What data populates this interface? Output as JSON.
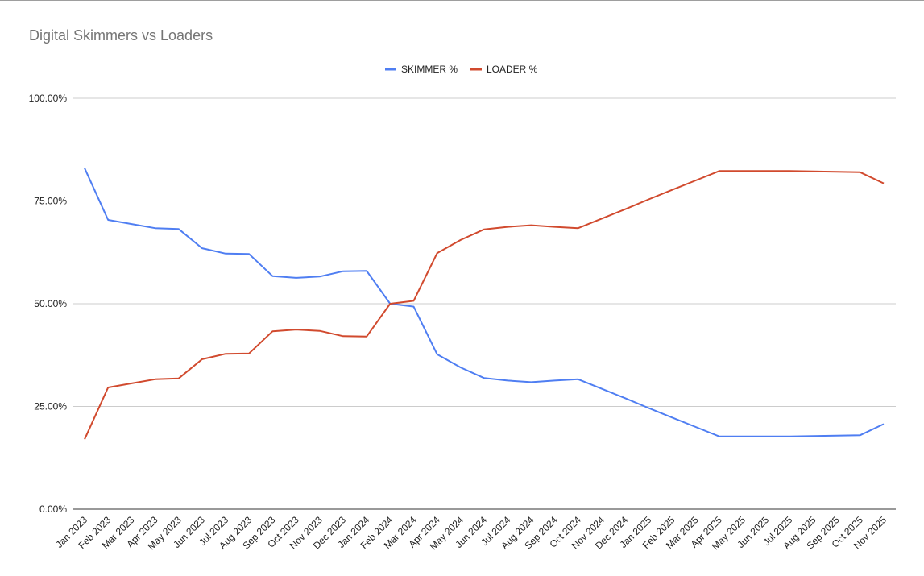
{
  "chart_data": {
    "type": "line",
    "title": "Digital Skimmers vs Loaders",
    "xlabel": "",
    "ylabel": "",
    "ylim": [
      0,
      100
    ],
    "yticks": [
      "0.00%",
      "25.00%",
      "50.00%",
      "75.00%",
      "100.00%"
    ],
    "ytick_values": [
      0,
      25,
      50,
      75,
      100
    ],
    "grid": true,
    "legend_position": "top",
    "categories": [
      "Jan 2023",
      "Feb 2023",
      "Mar 2023",
      "Apr 2023",
      "May 2023",
      "Jun 2023",
      "Jul 2023",
      "Aug 2023",
      "Sep 2023",
      "Oct 2023",
      "Nov 2023",
      "Dec 2023",
      "Jan 2024",
      "Feb 2024",
      "Mar 2024",
      "Apr 2024",
      "May 2024",
      "Jun 2024",
      "Jul 2024",
      "Aug 2024",
      "Sep 2024",
      "Oct 2024",
      "Nov 2024",
      "Dec 2024",
      "Jan 2025",
      "Feb 2025",
      "Mar 2025",
      "Apr 2025",
      "May 2025",
      "Jun 2025",
      "Jul 2025",
      "Aug 2025",
      "Sep 2025",
      "Oct 2025",
      "Nov 2025"
    ],
    "series": [
      {
        "name": "SKIMMER %",
        "color": "#4f7ef2",
        "values": [
          83.0,
          70.4,
          69.4,
          68.4,
          68.2,
          63.5,
          62.2,
          62.1,
          56.7,
          56.3,
          56.6,
          57.9,
          58.0,
          50.0,
          49.3,
          37.7,
          34.5,
          31.9,
          31.3,
          30.9,
          31.3,
          31.6,
          29.3,
          27.0,
          24.6,
          22.3,
          20.0,
          17.7,
          17.7,
          17.7,
          17.7,
          17.8,
          17.9,
          18.0,
          20.7
        ]
      },
      {
        "name": "LOADER %",
        "color": "#d14a2e",
        "values": [
          17.0,
          29.6,
          30.6,
          31.6,
          31.8,
          36.5,
          37.8,
          37.9,
          43.3,
          43.7,
          43.4,
          42.1,
          42.0,
          50.0,
          50.7,
          62.3,
          65.5,
          68.1,
          68.7,
          69.1,
          68.7,
          68.4,
          70.7,
          73.0,
          75.4,
          77.7,
          80.0,
          82.3,
          82.3,
          82.3,
          82.3,
          82.2,
          82.1,
          82.0,
          79.3
        ]
      }
    ]
  }
}
